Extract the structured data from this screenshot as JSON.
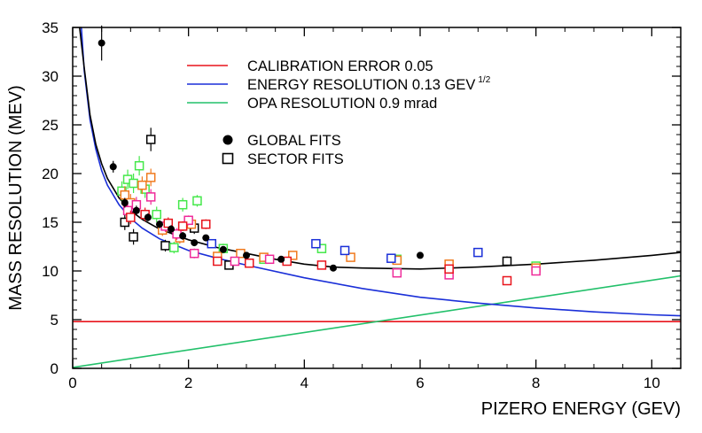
{
  "chart_data": {
    "type": "scatter",
    "title": "",
    "xlabel": "PIZERO ENERGY (GEV)",
    "ylabel": "MASS RESOLUTION (MEV)",
    "xlim": [
      0,
      10.5
    ],
    "ylim": [
      0,
      35
    ],
    "xticks": [
      0,
      2,
      4,
      6,
      8,
      10
    ],
    "yticks": [
      0,
      5,
      10,
      15,
      20,
      25,
      30,
      35
    ],
    "grid": false,
    "legend_position": "top-center",
    "legend": {
      "calibration": {
        "label": "CALIBRATION ERROR 0.05",
        "color": "#e8141c"
      },
      "energy": {
        "label": "ENERGY RESOLUTION 0.13 GEV",
        "sup": "1/2",
        "color": "#1a2fd8"
      },
      "opa": {
        "label": "OPA RESOLUTION 0.9 mrad",
        "color": "#22c06a"
      },
      "global": {
        "label": "GLOBAL FITS"
      },
      "sector": {
        "label": "SECTOR FITS"
      }
    },
    "curves": [
      {
        "key": "calibration",
        "color": "#e8141c",
        "x": [
          0.0,
          10.5
        ],
        "y": [
          4.8,
          4.8
        ]
      },
      {
        "key": "opa",
        "color": "#22c06a",
        "x": [
          0.0,
          10.5
        ],
        "y": [
          0.1,
          9.5
        ]
      },
      {
        "key": "energy",
        "color": "#1a2fd8",
        "x": [
          0.15,
          0.2,
          0.3,
          0.4,
          0.5,
          0.6,
          0.8,
          1.0,
          1.2,
          1.5,
          2.0,
          2.5,
          3.0,
          4.0,
          5.0,
          6.0,
          7.0,
          8.0,
          9.0,
          10.0,
          10.5
        ],
        "y": [
          35,
          30.5,
          25.5,
          22.5,
          20.3,
          18.8,
          16.8,
          15.4,
          14.4,
          13.3,
          12.1,
          11.3,
          10.6,
          9.3,
          8.2,
          7.3,
          6.7,
          6.2,
          5.8,
          5.5,
          5.4
        ]
      },
      {
        "key": "total",
        "color": "#000000",
        "x": [
          0.12,
          0.2,
          0.3,
          0.4,
          0.5,
          0.6,
          0.8,
          1.0,
          1.2,
          1.5,
          2.0,
          2.5,
          3.0,
          3.5,
          4.0,
          4.5,
          5.0,
          6.0,
          7.0,
          8.0,
          9.0,
          10.0,
          10.5
        ],
        "y": [
          35,
          30.8,
          26.0,
          23.0,
          21.0,
          19.5,
          17.5,
          16.2,
          15.3,
          14.3,
          13.2,
          12.4,
          11.8,
          11.2,
          10.7,
          10.4,
          10.3,
          10.2,
          10.4,
          10.7,
          11.1,
          11.6,
          11.9
        ]
      }
    ],
    "global_fits": [
      {
        "x": 0.5,
        "y": 33.4,
        "err": 1.8
      },
      {
        "x": 0.7,
        "y": 20.7,
        "err": 0.6
      },
      {
        "x": 0.9,
        "y": 17.0,
        "err": 0.5
      },
      {
        "x": 1.1,
        "y": 16.2,
        "err": 0.5
      },
      {
        "x": 1.3,
        "y": 15.5,
        "err": 0.4
      },
      {
        "x": 1.5,
        "y": 14.8,
        "err": 0.4
      },
      {
        "x": 1.7,
        "y": 14.3,
        "err": 0.4
      },
      {
        "x": 1.9,
        "y": 13.6,
        "err": 0.4
      },
      {
        "x": 2.1,
        "y": 12.9,
        "err": 0.3
      },
      {
        "x": 2.3,
        "y": 13.4,
        "err": 0.3
      },
      {
        "x": 2.6,
        "y": 12.2,
        "err": 0.3
      },
      {
        "x": 3.0,
        "y": 11.6,
        "err": 0.3
      },
      {
        "x": 3.6,
        "y": 11.2,
        "err": 0.3
      },
      {
        "x": 4.5,
        "y": 10.3,
        "err": 0.3
      },
      {
        "x": 6.0,
        "y": 11.6,
        "err": 0.3
      }
    ],
    "sector_fits": [
      {
        "x": 0.9,
        "y": 15.0,
        "err": 0.8,
        "color": "#000000"
      },
      {
        "x": 1.05,
        "y": 13.5,
        "err": 0.8,
        "color": "#000000"
      },
      {
        "x": 1.35,
        "y": 23.5,
        "err": 1.2,
        "color": "#000000"
      },
      {
        "x": 1.6,
        "y": 12.6,
        "err": 0.6,
        "color": "#000000"
      },
      {
        "x": 2.1,
        "y": 14.4,
        "err": 0.6,
        "color": "#000000"
      },
      {
        "x": 2.7,
        "y": 10.6,
        "err": 0.4,
        "color": "#000000"
      },
      {
        "x": 7.5,
        "y": 11.0,
        "err": 0.5,
        "color": "#000000"
      },
      {
        "x": 0.85,
        "y": 18.2,
        "err": 1.0,
        "color": "#44e84a"
      },
      {
        "x": 0.95,
        "y": 19.4,
        "err": 1.0,
        "color": "#44e84a"
      },
      {
        "x": 1.05,
        "y": 19.0,
        "err": 1.0,
        "color": "#44e84a"
      },
      {
        "x": 1.15,
        "y": 20.8,
        "err": 1.0,
        "color": "#44e84a"
      },
      {
        "x": 1.25,
        "y": 18.4,
        "err": 0.9,
        "color": "#44e84a"
      },
      {
        "x": 1.45,
        "y": 15.8,
        "err": 0.8,
        "color": "#44e84a"
      },
      {
        "x": 1.75,
        "y": 12.4,
        "err": 0.6,
        "color": "#44e84a"
      },
      {
        "x": 1.9,
        "y": 16.8,
        "err": 0.7,
        "color": "#44e84a"
      },
      {
        "x": 2.15,
        "y": 17.2,
        "err": 0.6,
        "color": "#44e84a"
      },
      {
        "x": 2.6,
        "y": 12.3,
        "err": 0.5,
        "color": "#44e84a"
      },
      {
        "x": 3.3,
        "y": 11.2,
        "err": 0.4,
        "color": "#44e84a"
      },
      {
        "x": 4.3,
        "y": 12.3,
        "err": 0.4,
        "color": "#44e84a"
      },
      {
        "x": 5.6,
        "y": 11.2,
        "err": 0.4,
        "color": "#44e84a"
      },
      {
        "x": 8.0,
        "y": 10.5,
        "err": 0.4,
        "color": "#44e84a"
      },
      {
        "x": 0.9,
        "y": 17.8,
        "err": 0.9,
        "color": "#f07a1e"
      },
      {
        "x": 1.0,
        "y": 17.0,
        "err": 0.9,
        "color": "#f07a1e"
      },
      {
        "x": 1.2,
        "y": 18.8,
        "err": 0.9,
        "color": "#f07a1e"
      },
      {
        "x": 1.35,
        "y": 19.6,
        "err": 0.9,
        "color": "#f07a1e"
      },
      {
        "x": 1.55,
        "y": 14.2,
        "err": 0.6,
        "color": "#f07a1e"
      },
      {
        "x": 1.85,
        "y": 13.4,
        "err": 0.6,
        "color": "#f07a1e"
      },
      {
        "x": 2.05,
        "y": 14.8,
        "err": 0.5,
        "color": "#f07a1e"
      },
      {
        "x": 2.5,
        "y": 11.5,
        "err": 0.4,
        "color": "#f07a1e"
      },
      {
        "x": 2.9,
        "y": 11.8,
        "err": 0.4,
        "color": "#f07a1e"
      },
      {
        "x": 3.3,
        "y": 11.4,
        "err": 0.4,
        "color": "#f07a1e"
      },
      {
        "x": 3.8,
        "y": 11.6,
        "err": 0.4,
        "color": "#f07a1e"
      },
      {
        "x": 4.8,
        "y": 11.4,
        "err": 0.4,
        "color": "#f07a1e"
      },
      {
        "x": 5.6,
        "y": 11.1,
        "err": 0.4,
        "color": "#f07a1e"
      },
      {
        "x": 6.5,
        "y": 10.7,
        "err": 0.4,
        "color": "#f07a1e"
      },
      {
        "x": 8.0,
        "y": 10.3,
        "err": 0.4,
        "color": "#f07a1e"
      },
      {
        "x": 0.95,
        "y": 16.2,
        "err": 0.8,
        "color": "#ef2b9a"
      },
      {
        "x": 1.1,
        "y": 16.8,
        "err": 0.8,
        "color": "#ef2b9a"
      },
      {
        "x": 1.35,
        "y": 17.6,
        "err": 0.8,
        "color": "#ef2b9a"
      },
      {
        "x": 1.6,
        "y": 14.6,
        "err": 0.6,
        "color": "#ef2b9a"
      },
      {
        "x": 1.8,
        "y": 13.8,
        "err": 0.6,
        "color": "#ef2b9a"
      },
      {
        "x": 2.0,
        "y": 15.2,
        "err": 0.5,
        "color": "#ef2b9a"
      },
      {
        "x": 2.1,
        "y": 11.8,
        "err": 0.5,
        "color": "#ef2b9a"
      },
      {
        "x": 2.8,
        "y": 11.0,
        "err": 0.4,
        "color": "#ef2b9a"
      },
      {
        "x": 3.4,
        "y": 11.2,
        "err": 0.4,
        "color": "#ef2b9a"
      },
      {
        "x": 5.6,
        "y": 9.8,
        "err": 0.4,
        "color": "#ef2b9a"
      },
      {
        "x": 6.5,
        "y": 9.6,
        "err": 0.4,
        "color": "#ef2b9a"
      },
      {
        "x": 8.0,
        "y": 10.0,
        "err": 0.4,
        "color": "#ef2b9a"
      },
      {
        "x": 1.0,
        "y": 15.5,
        "err": 0.7,
        "color": "#e8141c"
      },
      {
        "x": 1.25,
        "y": 15.8,
        "err": 0.7,
        "color": "#e8141c"
      },
      {
        "x": 1.65,
        "y": 14.9,
        "err": 0.6,
        "color": "#e8141c"
      },
      {
        "x": 1.9,
        "y": 14.6,
        "err": 0.5,
        "color": "#e8141c"
      },
      {
        "x": 2.3,
        "y": 14.8,
        "err": 0.5,
        "color": "#e8141c"
      },
      {
        "x": 2.5,
        "y": 11.0,
        "err": 0.4,
        "color": "#e8141c"
      },
      {
        "x": 3.05,
        "y": 10.8,
        "err": 0.4,
        "color": "#e8141c"
      },
      {
        "x": 3.7,
        "y": 11.0,
        "err": 0.4,
        "color": "#e8141c"
      },
      {
        "x": 4.3,
        "y": 10.6,
        "err": 0.4,
        "color": "#e8141c"
      },
      {
        "x": 6.5,
        "y": 10.2,
        "err": 0.4,
        "color": "#e8141c"
      },
      {
        "x": 7.5,
        "y": 9.0,
        "err": 0.4,
        "color": "#e8141c"
      },
      {
        "x": 2.4,
        "y": 12.8,
        "err": 0.4,
        "color": "#1a2fd8"
      },
      {
        "x": 4.2,
        "y": 12.8,
        "err": 0.4,
        "color": "#1a2fd8"
      },
      {
        "x": 4.7,
        "y": 12.1,
        "err": 0.4,
        "color": "#1a2fd8"
      },
      {
        "x": 5.5,
        "y": 11.3,
        "err": 0.4,
        "color": "#1a2fd8"
      },
      {
        "x": 7.0,
        "y": 11.9,
        "err": 0.4,
        "color": "#1a2fd8"
      }
    ]
  }
}
